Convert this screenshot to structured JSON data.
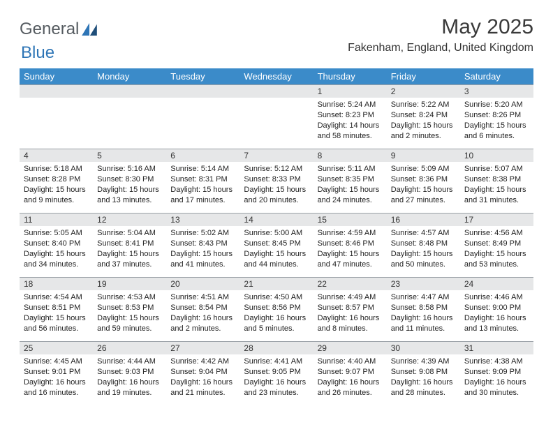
{
  "brand": {
    "part1": "General",
    "part2": "Blue"
  },
  "title": "May 2025",
  "location": "Fakenham, England, United Kingdom",
  "colors": {
    "header_bg": "#3b8bc9",
    "header_text": "#ffffff",
    "daynum_bg": "#e6e7e8",
    "row_border": "#9aa0a6",
    "brand_gray": "#555b60",
    "brand_blue": "#2e75b6",
    "page_bg": "#ffffff"
  },
  "weekdays": [
    "Sunday",
    "Monday",
    "Tuesday",
    "Wednesday",
    "Thursday",
    "Friday",
    "Saturday"
  ],
  "weeks": [
    [
      null,
      null,
      null,
      null,
      {
        "n": "1",
        "sr": "5:24 AM",
        "ss": "8:23 PM",
        "dl": "14 hours and 58 minutes."
      },
      {
        "n": "2",
        "sr": "5:22 AM",
        "ss": "8:24 PM",
        "dl": "15 hours and 2 minutes."
      },
      {
        "n": "3",
        "sr": "5:20 AM",
        "ss": "8:26 PM",
        "dl": "15 hours and 6 minutes."
      }
    ],
    [
      {
        "n": "4",
        "sr": "5:18 AM",
        "ss": "8:28 PM",
        "dl": "15 hours and 9 minutes."
      },
      {
        "n": "5",
        "sr": "5:16 AM",
        "ss": "8:30 PM",
        "dl": "15 hours and 13 minutes."
      },
      {
        "n": "6",
        "sr": "5:14 AM",
        "ss": "8:31 PM",
        "dl": "15 hours and 17 minutes."
      },
      {
        "n": "7",
        "sr": "5:12 AM",
        "ss": "8:33 PM",
        "dl": "15 hours and 20 minutes."
      },
      {
        "n": "8",
        "sr": "5:11 AM",
        "ss": "8:35 PM",
        "dl": "15 hours and 24 minutes."
      },
      {
        "n": "9",
        "sr": "5:09 AM",
        "ss": "8:36 PM",
        "dl": "15 hours and 27 minutes."
      },
      {
        "n": "10",
        "sr": "5:07 AM",
        "ss": "8:38 PM",
        "dl": "15 hours and 31 minutes."
      }
    ],
    [
      {
        "n": "11",
        "sr": "5:05 AM",
        "ss": "8:40 PM",
        "dl": "15 hours and 34 minutes."
      },
      {
        "n": "12",
        "sr": "5:04 AM",
        "ss": "8:41 PM",
        "dl": "15 hours and 37 minutes."
      },
      {
        "n": "13",
        "sr": "5:02 AM",
        "ss": "8:43 PM",
        "dl": "15 hours and 41 minutes."
      },
      {
        "n": "14",
        "sr": "5:00 AM",
        "ss": "8:45 PM",
        "dl": "15 hours and 44 minutes."
      },
      {
        "n": "15",
        "sr": "4:59 AM",
        "ss": "8:46 PM",
        "dl": "15 hours and 47 minutes."
      },
      {
        "n": "16",
        "sr": "4:57 AM",
        "ss": "8:48 PM",
        "dl": "15 hours and 50 minutes."
      },
      {
        "n": "17",
        "sr": "4:56 AM",
        "ss": "8:49 PM",
        "dl": "15 hours and 53 minutes."
      }
    ],
    [
      {
        "n": "18",
        "sr": "4:54 AM",
        "ss": "8:51 PM",
        "dl": "15 hours and 56 minutes."
      },
      {
        "n": "19",
        "sr": "4:53 AM",
        "ss": "8:53 PM",
        "dl": "15 hours and 59 minutes."
      },
      {
        "n": "20",
        "sr": "4:51 AM",
        "ss": "8:54 PM",
        "dl": "16 hours and 2 minutes."
      },
      {
        "n": "21",
        "sr": "4:50 AM",
        "ss": "8:56 PM",
        "dl": "16 hours and 5 minutes."
      },
      {
        "n": "22",
        "sr": "4:49 AM",
        "ss": "8:57 PM",
        "dl": "16 hours and 8 minutes."
      },
      {
        "n": "23",
        "sr": "4:47 AM",
        "ss": "8:58 PM",
        "dl": "16 hours and 11 minutes."
      },
      {
        "n": "24",
        "sr": "4:46 AM",
        "ss": "9:00 PM",
        "dl": "16 hours and 13 minutes."
      }
    ],
    [
      {
        "n": "25",
        "sr": "4:45 AM",
        "ss": "9:01 PM",
        "dl": "16 hours and 16 minutes."
      },
      {
        "n": "26",
        "sr": "4:44 AM",
        "ss": "9:03 PM",
        "dl": "16 hours and 19 minutes."
      },
      {
        "n": "27",
        "sr": "4:42 AM",
        "ss": "9:04 PM",
        "dl": "16 hours and 21 minutes."
      },
      {
        "n": "28",
        "sr": "4:41 AM",
        "ss": "9:05 PM",
        "dl": "16 hours and 23 minutes."
      },
      {
        "n": "29",
        "sr": "4:40 AM",
        "ss": "9:07 PM",
        "dl": "16 hours and 26 minutes."
      },
      {
        "n": "30",
        "sr": "4:39 AM",
        "ss": "9:08 PM",
        "dl": "16 hours and 28 minutes."
      },
      {
        "n": "31",
        "sr": "4:38 AM",
        "ss": "9:09 PM",
        "dl": "16 hours and 30 minutes."
      }
    ]
  ],
  "labels": {
    "sunrise": "Sunrise: ",
    "sunset": "Sunset: ",
    "daylight": "Daylight: "
  }
}
